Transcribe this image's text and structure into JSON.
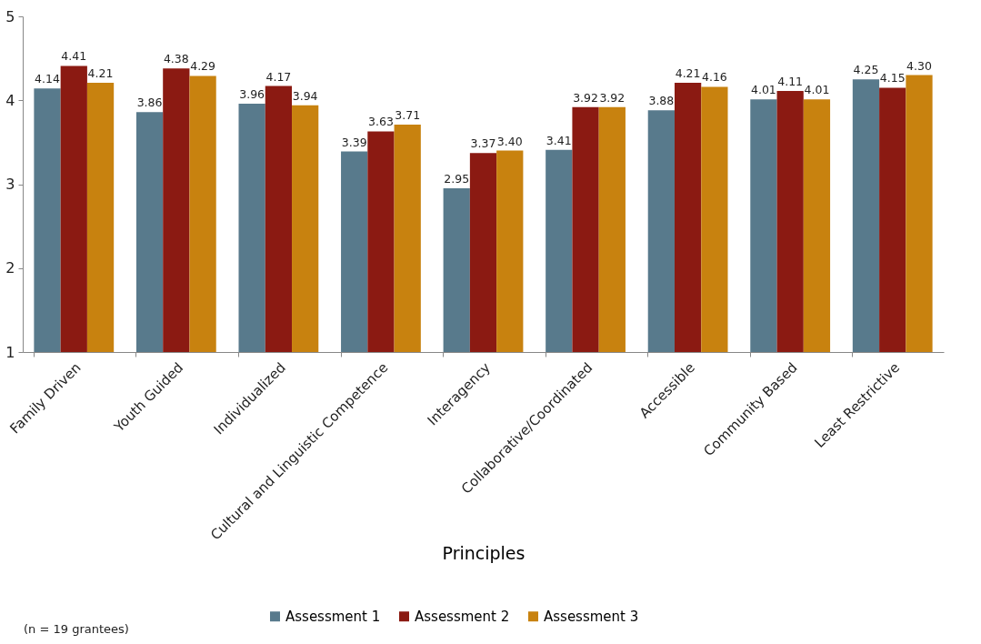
{
  "chart_data": {
    "type": "bar",
    "xlabel": "Principles",
    "categories": [
      "Family Driven",
      "Youth Guided",
      "Individualized",
      "Cultural and Linguistic Competence",
      "Interagency",
      "Collaborative/Coordinated",
      "Accessible",
      "Community Based",
      "Least Restrictive"
    ],
    "series": [
      {
        "name": "Assessment 1",
        "color": "#587a8c",
        "values": [
          4.14,
          3.86,
          3.96,
          3.39,
          2.95,
          3.41,
          3.88,
          4.01,
          4.25
        ],
        "value_labels": [
          "4.14",
          "3.86",
          "3.96",
          "3.39",
          "2.95",
          "3.41",
          "3.88",
          "4.01",
          "4.25"
        ]
      },
      {
        "name": "Assessment 2",
        "color": "#8b1a12",
        "values": [
          4.41,
          4.38,
          4.17,
          3.63,
          3.37,
          3.92,
          4.21,
          4.11,
          4.15
        ],
        "value_labels": [
          "4.41",
          "4.38",
          "4.17",
          "3.63",
          "3.37",
          "3.92",
          "4.21",
          "4.11",
          "4.15"
        ]
      },
      {
        "name": "Assessment 3",
        "color": "#c8820f",
        "values": [
          4.21,
          4.29,
          3.94,
          3.71,
          3.4,
          3.92,
          4.16,
          4.01,
          4.3
        ],
        "value_labels": [
          "4.21",
          "4.29",
          "3.94",
          "3.71",
          "3.40",
          "3.92",
          "4.16",
          "4.01",
          "4.30"
        ]
      }
    ],
    "ylim": [
      1,
      5
    ],
    "yticks": [
      1,
      2,
      3,
      4,
      5
    ],
    "grid": false,
    "legend": "bottom",
    "annotations": [
      "(n = 19 grantees)"
    ]
  }
}
